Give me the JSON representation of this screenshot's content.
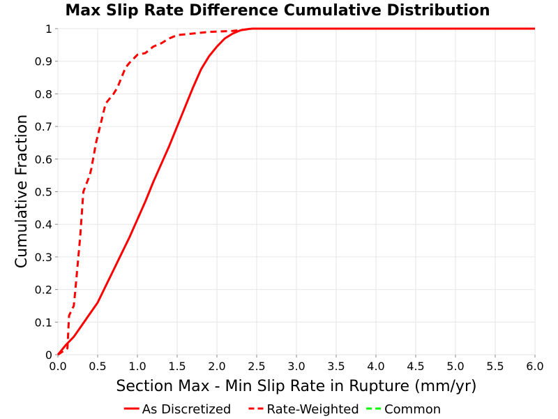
{
  "chart_data": {
    "type": "line",
    "title": "Max Slip Rate Difference Cumulative Distribution",
    "xlabel": "Section Max - Min Slip Rate in Rupture (mm/yr)",
    "ylabel": "Cumulative Fraction",
    "xlim": [
      0,
      6
    ],
    "ylim": [
      0,
      1
    ],
    "x_ticks": [
      "0.0",
      "0.5",
      "1.0",
      "1.5",
      "2.0",
      "2.5",
      "3.0",
      "3.5",
      "4.0",
      "4.5",
      "5.0",
      "5.5",
      "6.0"
    ],
    "y_ticks": [
      "0",
      "0.1",
      "0.2",
      "0.3",
      "0.4",
      "0.5",
      "0.6",
      "0.7",
      "0.8",
      "0.9",
      "1"
    ],
    "grid": true,
    "legend_position": "bottom",
    "series": [
      {
        "name": "As Discretized",
        "color": "#ff0000",
        "style": "solid",
        "points": [
          [
            0,
            0
          ],
          [
            0.1,
            0.03
          ],
          [
            0.2,
            0.055
          ],
          [
            0.3,
            0.09
          ],
          [
            0.4,
            0.125
          ],
          [
            0.5,
            0.16
          ],
          [
            0.6,
            0.21
          ],
          [
            0.7,
            0.26
          ],
          [
            0.8,
            0.31
          ],
          [
            0.9,
            0.36
          ],
          [
            1.0,
            0.415
          ],
          [
            1.1,
            0.47
          ],
          [
            1.2,
            0.53
          ],
          [
            1.3,
            0.585
          ],
          [
            1.4,
            0.64
          ],
          [
            1.5,
            0.7
          ],
          [
            1.6,
            0.76
          ],
          [
            1.7,
            0.82
          ],
          [
            1.8,
            0.875
          ],
          [
            1.9,
            0.915
          ],
          [
            2.0,
            0.945
          ],
          [
            2.1,
            0.97
          ],
          [
            2.2,
            0.985
          ],
          [
            2.3,
            0.995
          ],
          [
            2.4,
            0.999
          ],
          [
            2.45,
            1.0
          ],
          [
            6.0,
            1.0
          ]
        ]
      },
      {
        "name": "Rate-Weighted",
        "color": "#ff0000",
        "style": "dashed",
        "points": [
          [
            0,
            0
          ],
          [
            0.12,
            0.02
          ],
          [
            0.14,
            0.12
          ],
          [
            0.2,
            0.15
          ],
          [
            0.22,
            0.2
          ],
          [
            0.28,
            0.36
          ],
          [
            0.32,
            0.5
          ],
          [
            0.4,
            0.55
          ],
          [
            0.42,
            0.57
          ],
          [
            0.48,
            0.65
          ],
          [
            0.55,
            0.72
          ],
          [
            0.6,
            0.77
          ],
          [
            0.7,
            0.8
          ],
          [
            0.75,
            0.82
          ],
          [
            0.85,
            0.88
          ],
          [
            0.9,
            0.895
          ],
          [
            1.0,
            0.92
          ],
          [
            1.1,
            0.925
          ],
          [
            1.2,
            0.945
          ],
          [
            1.3,
            0.955
          ],
          [
            1.4,
            0.97
          ],
          [
            1.5,
            0.98
          ],
          [
            1.7,
            0.985
          ],
          [
            1.9,
            0.99
          ],
          [
            2.2,
            0.993
          ],
          [
            2.45,
            1.0
          ],
          [
            6.0,
            1.0
          ]
        ]
      },
      {
        "name": "Common",
        "color": "#00ff00",
        "style": "dashed",
        "points": []
      }
    ]
  }
}
